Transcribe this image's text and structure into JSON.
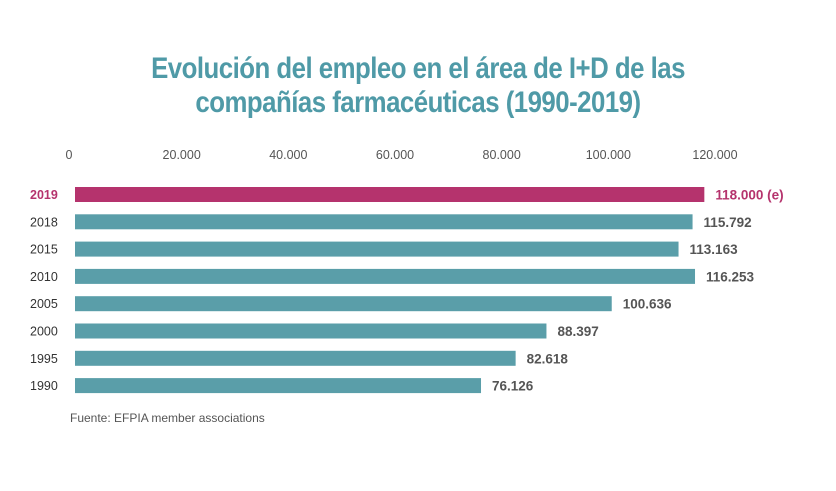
{
  "title_line1": "Evolución del empleo en el área de I+D de las",
  "title_line2": "compañías farmacéuticas (1990-2019)",
  "source": "Fuente: EFPIA member associations",
  "colors": {
    "title": "#4f9aa7",
    "bar": "#5a9ea9",
    "highlight": "#b5336d",
    "label": "#555555",
    "tick": "#555555"
  },
  "chart_data": {
    "type": "bar",
    "orientation": "horizontal",
    "title": "Evolución del empleo en el área de I+D de las compañías farmacéuticas (1990-2019)",
    "categories": [
      "2019",
      "2018",
      "2015",
      "2010",
      "2005",
      "2000",
      "1995",
      "1990"
    ],
    "values": [
      118000,
      115792,
      113163,
      116253,
      100636,
      88397,
      82618,
      76126
    ],
    "value_labels": [
      "118.000 (e)",
      "115.792",
      "113.163",
      "116.253",
      "100.636",
      "88.397",
      "82.618",
      "76.126"
    ],
    "highlight_category": "2019",
    "xlim": [
      0,
      120000
    ],
    "x_ticks": [
      0,
      20000,
      40000,
      60000,
      80000,
      100000,
      120000
    ],
    "x_tick_labels": [
      "0",
      "20.000",
      "40.000",
      "60.000",
      "80.000",
      "100.000",
      "120.000"
    ],
    "x_axis_position": "top",
    "grid": false,
    "xlabel": "",
    "ylabel": ""
  }
}
